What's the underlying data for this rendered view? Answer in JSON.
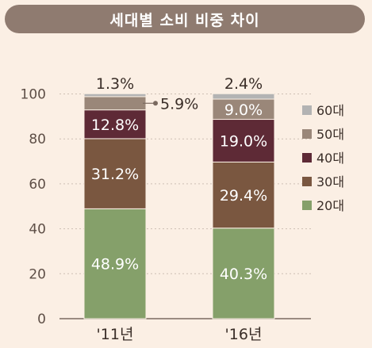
{
  "chart_data": {
    "type": "bar",
    "stacked": true,
    "title": "세대별 소비 비중 차이",
    "categories": [
      "'11년",
      "'16년"
    ],
    "series": [
      {
        "name": "20대",
        "values": [
          48.9,
          40.3
        ],
        "labels": [
          "48.9%",
          "40.3%"
        ],
        "color": "#85a06a"
      },
      {
        "name": "30대",
        "values": [
          31.2,
          29.4
        ],
        "labels": [
          "31.2%",
          "29.4%"
        ],
        "color": "#7a5740"
      },
      {
        "name": "40대",
        "values": [
          12.8,
          19.0
        ],
        "labels": [
          "12.8%",
          "19.0%"
        ],
        "color": "#5e2a36"
      },
      {
        "name": "50대",
        "values": [
          5.9,
          9.0
        ],
        "labels": [
          "5.9%",
          "9.0%"
        ],
        "color": "#9a8779"
      },
      {
        "name": "60대",
        "values": [
          1.3,
          2.4
        ],
        "labels": [
          "1.3%",
          "2.4%"
        ],
        "color": "#b3b3b3"
      }
    ],
    "ylim": [
      0,
      105
    ],
    "yticks": [
      "0",
      "20",
      "40",
      "60",
      "80",
      "100"
    ],
    "grid": true,
    "legend_position": "right"
  }
}
